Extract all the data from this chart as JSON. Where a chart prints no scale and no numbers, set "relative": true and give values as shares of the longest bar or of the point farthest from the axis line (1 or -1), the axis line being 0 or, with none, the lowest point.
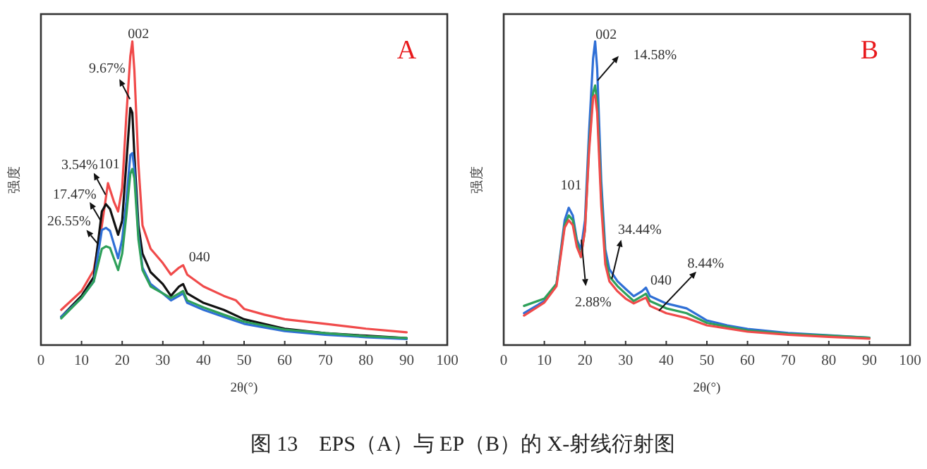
{
  "chart_data": [
    {
      "type": "line",
      "title": "A",
      "relative": true,
      "xlabel": "2θ(°)",
      "ylabel": "强度",
      "xlim": [
        0,
        100
      ],
      "xticks": [
        0,
        10,
        20,
        30,
        40,
        50,
        60,
        70,
        80,
        90,
        100
      ],
      "tick_labels": "x",
      "x": [
        5,
        10,
        13,
        15,
        16.5,
        18,
        19,
        20,
        21,
        22,
        22.5,
        23,
        24,
        25,
        27,
        30,
        32,
        34,
        35,
        36,
        40,
        45,
        48,
        50,
        55,
        60,
        70,
        80,
        90
      ],
      "series": [
        {
          "color": "#f04a4a",
          "values": [
            0.116,
            0.178,
            0.247,
            0.394,
            0.533,
            0.471,
            0.44,
            0.518,
            0.75,
            0.951,
            1.0,
            0.904,
            0.595,
            0.394,
            0.317,
            0.27,
            0.232,
            0.255,
            0.263,
            0.232,
            0.193,
            0.162,
            0.147,
            0.119,
            0.1,
            0.085,
            0.07,
            0.054,
            0.042
          ]
        },
        {
          "color": "#111111",
          "x": [
            5,
            10,
            13,
            15,
            16,
            17,
            19,
            20,
            21,
            22,
            22.5,
            23,
            24,
            25,
            27,
            30,
            32,
            34,
            35,
            36,
            40,
            45,
            50,
            60,
            70,
            80,
            90
          ],
          "values": [
            0.093,
            0.162,
            0.224,
            0.44,
            0.464,
            0.448,
            0.363,
            0.41,
            0.595,
            0.781,
            0.765,
            0.626,
            0.394,
            0.301,
            0.24,
            0.201,
            0.162,
            0.193,
            0.201,
            0.17,
            0.139,
            0.116,
            0.085,
            0.054,
            0.039,
            0.031,
            0.023
          ]
        },
        {
          "color": "#2f6fd6",
          "x": [
            5,
            10,
            13,
            15,
            16,
            17,
            19,
            20,
            21,
            22,
            22.5,
            23,
            24,
            25,
            27,
            30,
            32,
            34,
            35,
            36,
            40,
            45,
            50,
            60,
            70,
            80,
            90
          ],
          "values": [
            0.093,
            0.155,
            0.209,
            0.379,
            0.386,
            0.376,
            0.286,
            0.348,
            0.471,
            0.626,
            0.632,
            0.58,
            0.363,
            0.255,
            0.201,
            0.17,
            0.147,
            0.162,
            0.17,
            0.139,
            0.116,
            0.093,
            0.07,
            0.046,
            0.034,
            0.026,
            0.02
          ]
        },
        {
          "color": "#2ea05a",
          "x": [
            5,
            10,
            13,
            15,
            16,
            17,
            19,
            20,
            21,
            22,
            22.5,
            23,
            24,
            25,
            27,
            30,
            32,
            34,
            35,
            36,
            40,
            45,
            50,
            60,
            70,
            80,
            90
          ],
          "values": [
            0.088,
            0.155,
            0.209,
            0.317,
            0.325,
            0.32,
            0.247,
            0.301,
            0.425,
            0.564,
            0.58,
            0.549,
            0.348,
            0.247,
            0.193,
            0.17,
            0.155,
            0.17,
            0.178,
            0.147,
            0.124,
            0.1,
            0.077,
            0.051,
            0.039,
            0.029,
            0.023
          ]
        }
      ],
      "annotations": [
        "002",
        "9.67%",
        "101",
        "3.54%",
        "17.47%",
        "26.55%",
        "040",
        "图 13　EPS（A）与 EP（B）的 X-射线衍射图"
      ]
    },
    {
      "type": "line",
      "title": "B",
      "relative": true,
      "xlabel": "2θ(°)",
      "ylabel": "强度",
      "xlim": [
        0,
        100
      ],
      "xticks": [
        0,
        10,
        20,
        30,
        40,
        50,
        60,
        70,
        80,
        90,
        100
      ],
      "tick_labels": "x",
      "x": [
        5,
        10,
        13,
        15,
        16,
        17,
        18,
        19,
        20,
        21,
        22,
        22.5,
        23,
        24,
        25,
        26,
        28,
        30,
        32,
        34,
        35,
        36,
        40,
        45,
        50,
        60,
        70,
        80,
        90
      ],
      "series": [
        {
          "color": "#2f6fd6",
          "x": [
            5,
            10,
            13,
            15,
            16,
            17,
            18,
            19,
            20,
            21,
            22,
            22.5,
            23,
            24,
            25,
            26,
            28,
            30,
            32,
            34,
            35,
            36,
            40,
            45,
            48,
            50,
            55,
            60,
            70,
            80,
            90
          ],
          "values": [
            0.105,
            0.145,
            0.202,
            0.411,
            0.452,
            0.427,
            0.347,
            0.315,
            0.411,
            0.702,
            0.944,
            1.0,
            0.911,
            0.54,
            0.315,
            0.25,
            0.21,
            0.185,
            0.161,
            0.177,
            0.189,
            0.161,
            0.137,
            0.121,
            0.097,
            0.081,
            0.065,
            0.053,
            0.04,
            0.032,
            0.024
          ]
        },
        {
          "color": "#2ea05a",
          "values": [
            0.129,
            0.153,
            0.202,
            0.395,
            0.427,
            0.411,
            0.339,
            0.29,
            0.379,
            0.653,
            0.831,
            0.855,
            0.798,
            0.492,
            0.29,
            0.226,
            0.194,
            0.169,
            0.145,
            0.161,
            0.169,
            0.145,
            0.121,
            0.105,
            0.073,
            0.048,
            0.037,
            0.031,
            0.024
          ]
        },
        {
          "color": "#f04a4a",
          "values": [
            0.097,
            0.14,
            0.194,
            0.387,
            0.411,
            0.395,
            0.323,
            0.29,
            0.379,
            0.637,
            0.815,
            0.823,
            0.766,
            0.46,
            0.266,
            0.21,
            0.177,
            0.153,
            0.137,
            0.15,
            0.156,
            0.129,
            0.105,
            0.089,
            0.065,
            0.044,
            0.034,
            0.027,
            0.021
          ]
        }
      ],
      "annotations": [
        "002",
        "14.58%",
        "101",
        "34.44%",
        "2.88%",
        "040",
        "8.44%"
      ]
    }
  ]
}
